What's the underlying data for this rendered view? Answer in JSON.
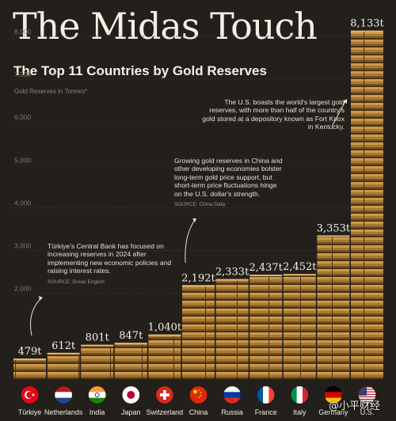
{
  "header": {
    "title": "The Midas Touch",
    "subtitle": "The Top 11 Countries by Gold Reserves"
  },
  "chart_data": {
    "type": "bar",
    "title": "The Midas Touch",
    "subtitle": "The Top 11 Countries by Gold Reserves",
    "ylabel": "Gold Reserves in Tonnes*",
    "xlabel": "",
    "ylim": [
      0,
      8200
    ],
    "yticks": [
      2000,
      3000,
      4000,
      5000,
      6000,
      7000,
      8000
    ],
    "ytick_labels": [
      "2,000",
      "3,000",
      "4,000",
      "5,000",
      "6,000",
      "7,000",
      "8,000"
    ],
    "grid": true,
    "categories": [
      "Türkiye",
      "Netherlands",
      "India",
      "Japan",
      "Switzerland",
      "China",
      "Russia",
      "France",
      "Italy",
      "Germany",
      "U.S."
    ],
    "values": [
      479,
      612,
      801,
      847,
      1040,
      2192,
      2333,
      2437,
      2452,
      3353,
      8133
    ],
    "value_labels": [
      "479t",
      "612t",
      "801t",
      "847t",
      "1,040t",
      "2,192t",
      "2,333t",
      "2,437t",
      "2,452t",
      "3,353t",
      "8,133t"
    ],
    "flags": [
      "flag-turkiye-icon",
      "flag-netherlands-icon",
      "flag-india-icon",
      "flag-japan-icon",
      "flag-switzerland-icon",
      "flag-china-icon",
      "flag-russia-icon",
      "flag-france-icon",
      "flag-italy-icon",
      "flag-germany-icon",
      "flag-us-icon"
    ],
    "colors": {
      "background": "#231f1b",
      "gold_light": "#c99a4b",
      "gold_dark": "#6e4c21"
    }
  },
  "annotations": {
    "turkiye": {
      "text": "Türkiye's Central Bank has focused on increasing reserves in 2024 after implementing new economic policies and raising interest rates.",
      "source": "SOURCE: Duvar English"
    },
    "china": {
      "text": "Growing gold reserves in China and other developing economies bolster long-term gold price support, but short-term price fluctuations hinge on the U.S. dollar's strength.",
      "source": "SOURCE: China Daily"
    },
    "us": {
      "text": "The U.S. boasts the world's largest gold reserves, with more than half of the country's gold stored at a depository known as Fort Knox in Kentucky."
    }
  },
  "watermark": "@小平财经"
}
